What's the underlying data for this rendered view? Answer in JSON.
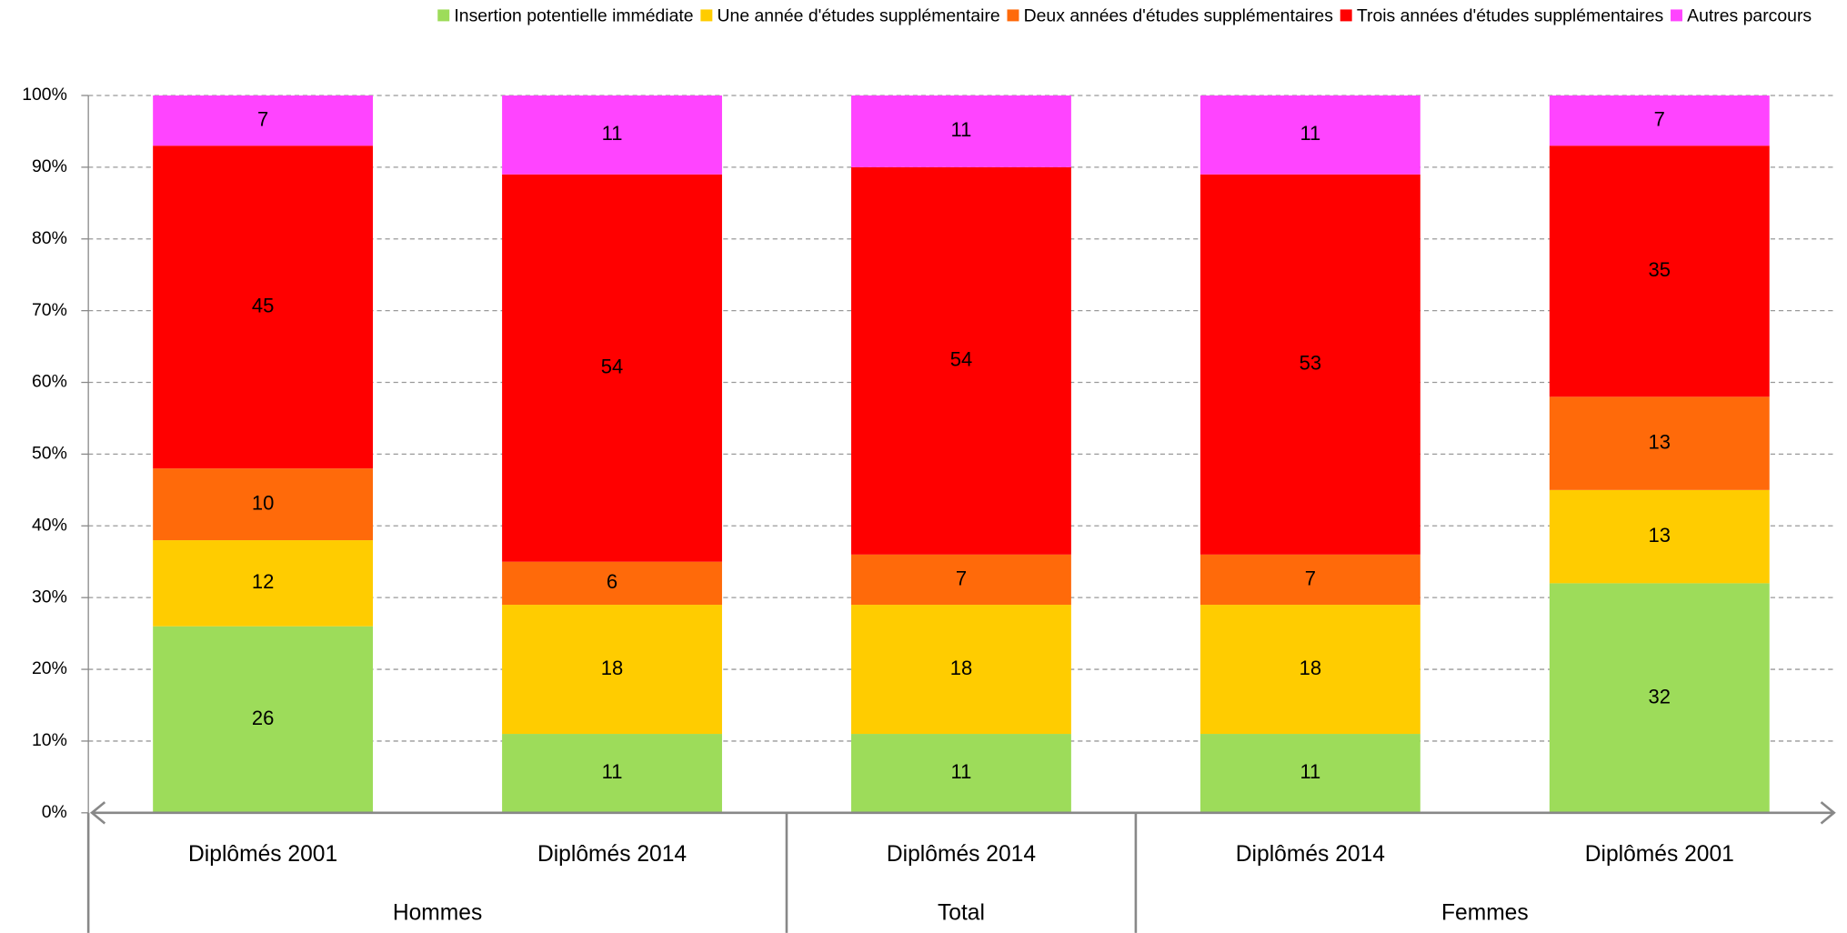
{
  "chart_data": {
    "type": "stacked_bar",
    "groups": [
      {
        "label": "Hommes",
        "categories": [
          "Diplômés 2001",
          "Diplômés 2014"
        ]
      },
      {
        "label": "Total",
        "categories": [
          "Diplômés 2014"
        ]
      },
      {
        "label": "Femmes",
        "categories": [
          "Diplômés 2014",
          "Diplômés 2001"
        ]
      }
    ],
    "series": [
      {
        "name": "Insertion potentielle immédiate",
        "color": "#9ddc5a",
        "values": [
          26,
          11,
          11,
          11,
          32
        ]
      },
      {
        "name": "Une année d'études supplémentaire",
        "color": "#ffcc00",
        "values": [
          12,
          18,
          18,
          18,
          13
        ]
      },
      {
        "name": "Deux années d'études supplémentaires",
        "color": "#ff6a0a",
        "values": [
          10,
          6,
          7,
          7,
          13
        ]
      },
      {
        "name": "Trois années d'études supplémentaires",
        "color": "#ff0000",
        "values": [
          45,
          54,
          54,
          53,
          35
        ]
      },
      {
        "name": "Autres parcours",
        "color": "#ff44ff",
        "values": [
          7,
          11,
          11,
          11,
          7
        ]
      }
    ],
    "ylim": [
      0,
      100
    ],
    "yticks": [
      {
        "value": 0,
        "label": "0%"
      },
      {
        "value": 10,
        "label": "10%"
      },
      {
        "value": 20,
        "label": "20%"
      },
      {
        "value": 30,
        "label": "30%"
      },
      {
        "value": 40,
        "label": "40%"
      },
      {
        "value": 50,
        "label": "50%"
      },
      {
        "value": 60,
        "label": "60%"
      },
      {
        "value": 70,
        "label": "70%"
      },
      {
        "value": 80,
        "label": "80%"
      },
      {
        "value": 90,
        "label": "90%"
      },
      {
        "value": 100,
        "label": "100%"
      }
    ],
    "grid": true,
    "legend": "top"
  }
}
